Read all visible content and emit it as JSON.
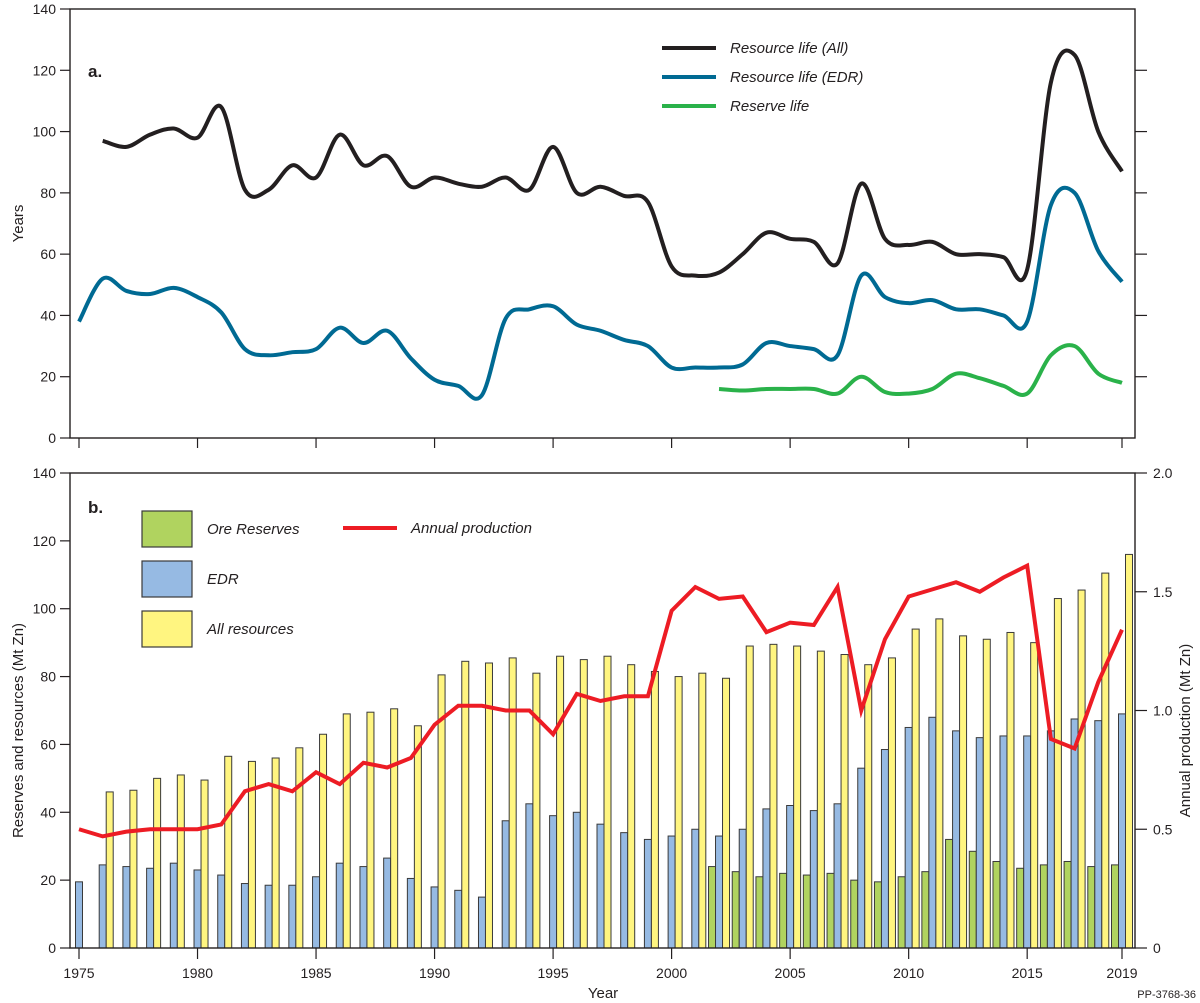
{
  "figure_id": "PP-3768-36",
  "chart_data": [
    {
      "panel": "a.",
      "type": "line",
      "xlabel": "",
      "ylabel": "Years",
      "ylim": [
        0,
        140
      ],
      "yticks": [
        0,
        20,
        40,
        60,
        80,
        100,
        120,
        140
      ],
      "xlim": [
        1975,
        2019
      ],
      "xticks": [
        1975,
        1980,
        1985,
        1990,
        1995,
        2000,
        2005,
        2010,
        2015,
        2019
      ],
      "grid": false,
      "legend_position": "top-right",
      "series": [
        {
          "name": "Resource life (All)",
          "color": "#231f20",
          "x": [
            1976,
            1977,
            1978,
            1979,
            1980,
            1981,
            1982,
            1983,
            1984,
            1985,
            1986,
            1987,
            1988,
            1989,
            1990,
            1991,
            1992,
            1993,
            1994,
            1995,
            1996,
            1997,
            1998,
            1999,
            2000,
            2001,
            2002,
            2003,
            2004,
            2005,
            2006,
            2007,
            2008,
            2009,
            2010,
            2011,
            2012,
            2013,
            2014,
            2015,
            2016,
            2017,
            2018,
            2019
          ],
          "y": [
            97,
            95,
            99,
            101,
            98,
            108,
            81,
            81,
            89,
            85,
            99,
            89,
            92,
            82,
            85,
            83,
            82,
            85,
            81,
            95,
            80,
            82,
            79,
            77,
            56,
            53,
            54,
            60,
            67,
            65,
            64,
            57,
            83,
            65,
            63,
            64,
            60,
            60,
            59,
            55,
            116,
            125,
            100,
            87
          ]
        },
        {
          "name": "Resource life (EDR)",
          "color": "#006a93",
          "x": [
            1975,
            1976,
            1977,
            1978,
            1979,
            1980,
            1981,
            1982,
            1983,
            1984,
            1985,
            1986,
            1987,
            1988,
            1989,
            1990,
            1991,
            1992,
            1993,
            1994,
            1995,
            1996,
            1997,
            1998,
            1999,
            2000,
            2001,
            2002,
            2003,
            2004,
            2005,
            2006,
            2007,
            2008,
            2009,
            2010,
            2011,
            2012,
            2013,
            2014,
            2015,
            2016,
            2017,
            2018,
            2019
          ],
          "y": [
            38,
            52,
            48,
            47,
            49,
            46,
            41,
            29,
            27,
            28,
            29,
            36,
            31,
            35,
            26,
            19,
            17,
            14,
            39,
            42,
            43,
            37,
            35,
            32,
            30,
            23,
            23,
            23,
            24,
            31,
            30,
            29,
            27,
            53,
            46,
            44,
            45,
            42,
            42,
            40,
            38,
            76,
            80,
            61,
            51
          ]
        },
        {
          "name": "Reserve life",
          "color": "#2ab24a",
          "x": [
            2002,
            2003,
            2004,
            2005,
            2006,
            2007,
            2008,
            2009,
            2010,
            2011,
            2012,
            2013,
            2014,
            2015,
            2016,
            2017,
            2018,
            2019
          ],
          "y": [
            16,
            15.5,
            16,
            16,
            16,
            14.5,
            20,
            15,
            14.5,
            16,
            21,
            19.5,
            17,
            14.5,
            27,
            30,
            21,
            18
          ]
        }
      ]
    },
    {
      "panel": "b.",
      "type": "bar",
      "xlabel": "Year",
      "ylabel": "Reserves and resources (Mt Zn)",
      "ylabel_right": "Annual production (Mt Zn)",
      "ylim": [
        0,
        140
      ],
      "yticks": [
        0,
        20,
        40,
        60,
        80,
        100,
        120,
        140
      ],
      "ylim_right": [
        0,
        2.0
      ],
      "yticks_right": [
        "0",
        "0.5",
        "1.0",
        "1.5",
        "2.0"
      ],
      "xticks": [
        1975,
        1980,
        1985,
        1990,
        1995,
        2000,
        2005,
        2010,
        2015,
        2019
      ],
      "grid": false,
      "legend_position": "top-left",
      "categories": [
        1975,
        1976,
        1977,
        1978,
        1979,
        1980,
        1981,
        1982,
        1983,
        1984,
        1985,
        1986,
        1987,
        1988,
        1989,
        1990,
        1991,
        1992,
        1993,
        1994,
        1995,
        1996,
        1997,
        1998,
        1999,
        2000,
        2001,
        2002,
        2003,
        2004,
        2005,
        2006,
        2007,
        2008,
        2009,
        2010,
        2011,
        2012,
        2013,
        2014,
        2015,
        2016,
        2017,
        2018,
        2019
      ],
      "series": [
        {
          "name": "Ore Reserves",
          "color": "#b0d35f",
          "axis": "left",
          "values": [
            null,
            null,
            null,
            null,
            null,
            null,
            null,
            null,
            null,
            null,
            null,
            null,
            null,
            null,
            null,
            null,
            null,
            null,
            null,
            null,
            null,
            null,
            null,
            null,
            null,
            null,
            null,
            24,
            22.5,
            21,
            22,
            21.5,
            22,
            20,
            19.5,
            21,
            22.5,
            32,
            28.5,
            25.5,
            23.5,
            24.5,
            25.5,
            24,
            24.5
          ]
        },
        {
          "name": "EDR",
          "color": "#96bae3",
          "axis": "left",
          "values": [
            19.5,
            24.5,
            24,
            23.5,
            25,
            23,
            21.5,
            19,
            18.5,
            18.5,
            21,
            25,
            24,
            26.5,
            20.5,
            18,
            17,
            15,
            37.5,
            42.5,
            39,
            40,
            36.5,
            34,
            32,
            33,
            35,
            33,
            35,
            41,
            42,
            40.5,
            42.5,
            53,
            58.5,
            65,
            68,
            64,
            62,
            62.5,
            62.5,
            64,
            67.5,
            67,
            69
          ]
        },
        {
          "name": "All resources",
          "color": "#fff580",
          "axis": "left",
          "values": [
            null,
            46,
            46.5,
            50,
            51,
            49.5,
            56.5,
            55,
            56,
            59,
            63,
            69,
            69.5,
            70.5,
            65.5,
            80.5,
            84.5,
            84,
            85.5,
            81,
            86,
            85,
            86,
            83.5,
            81.5,
            80,
            81,
            79.5,
            89,
            89.5,
            89,
            87.5,
            86.5,
            83.5,
            85.5,
            94,
            97,
            92,
            91,
            93,
            90,
            103,
            105.5,
            110.5,
            116
          ]
        },
        {
          "name": "Annual production",
          "color": "#ed1c24",
          "type": "line",
          "axis": "right",
          "values": [
            0.5,
            0.47,
            0.49,
            0.5,
            0.5,
            0.5,
            0.52,
            0.66,
            0.69,
            0.66,
            0.74,
            0.69,
            0.78,
            0.76,
            0.8,
            0.94,
            1.02,
            1.02,
            1.0,
            1.0,
            0.9,
            1.07,
            1.04,
            1.06,
            1.06,
            1.42,
            1.52,
            1.47,
            1.48,
            1.33,
            1.37,
            1.36,
            1.52,
            1.0,
            1.3,
            1.48,
            1.51,
            1.54,
            1.5,
            1.56,
            1.61,
            0.88,
            0.84,
            1.12,
            1.34
          ]
        }
      ]
    }
  ]
}
